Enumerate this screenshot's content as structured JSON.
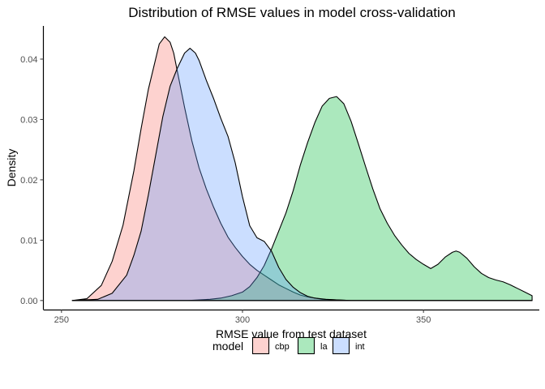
{
  "chart_data": {
    "type": "area",
    "title": "Distribution of RMSE values in model cross-validation",
    "xlabel": "RMSE value from test dataset",
    "ylabel": "Density",
    "xlim": [
      245,
      382
    ],
    "ylim": [
      -0.0015,
      0.0455
    ],
    "x_ticks": [
      250,
      300,
      350
    ],
    "x_tick_labels": [
      "250",
      "300",
      "350"
    ],
    "y_ticks": [
      0.0,
      0.01,
      0.02,
      0.03,
      0.04
    ],
    "y_tick_labels": [
      "0.00",
      "0.01",
      "0.02",
      "0.03",
      "0.04"
    ],
    "grid": false,
    "legend": {
      "title": "model",
      "position": "bottom"
    },
    "series": [
      {
        "name": "cbp",
        "color": "#F8766D",
        "x": [
          253,
          257,
          261,
          264,
          267,
          270,
          272,
          274,
          276,
          277,
          278.5,
          280,
          281,
          282,
          284,
          286,
          288,
          290,
          292,
          294,
          296,
          298,
          300,
          302,
          304,
          306,
          308,
          310,
          312,
          314,
          316,
          318,
          320,
          322,
          326,
          330,
          335,
          345,
          355,
          380
        ],
        "y": [
          0.0,
          0.0003,
          0.0025,
          0.0065,
          0.0125,
          0.0215,
          0.0285,
          0.035,
          0.04,
          0.0425,
          0.0437,
          0.0428,
          0.041,
          0.038,
          0.032,
          0.0265,
          0.022,
          0.0185,
          0.0155,
          0.0128,
          0.0105,
          0.0088,
          0.0073,
          0.006,
          0.005,
          0.0042,
          0.0034,
          0.0026,
          0.002,
          0.0014,
          0.0009,
          0.0006,
          0.0004,
          0.0002,
          0.0001,
          0.0,
          0.0,
          0.0,
          0.0,
          0.0
        ]
      },
      {
        "name": "la",
        "color": "#00BA38",
        "x": [
          253,
          285,
          288,
          291,
          294,
          297,
          300,
          302,
          304,
          306,
          308,
          310,
          312,
          314,
          316,
          318,
          320,
          322,
          324,
          326,
          328,
          330,
          332,
          334,
          336,
          338,
          340,
          342,
          344,
          346,
          348,
          350,
          352,
          354,
          356,
          358,
          359,
          360,
          362,
          364,
          366,
          368,
          370,
          372,
          374,
          376,
          378,
          380
        ],
        "y": [
          0.0,
          0.0,
          0.0001,
          0.0002,
          0.0004,
          0.0008,
          0.0014,
          0.0023,
          0.0038,
          0.0058,
          0.0085,
          0.0115,
          0.0145,
          0.0182,
          0.0225,
          0.0262,
          0.0295,
          0.0322,
          0.0335,
          0.0338,
          0.0326,
          0.0297,
          0.026,
          0.0222,
          0.0185,
          0.0152,
          0.0128,
          0.0108,
          0.0092,
          0.0078,
          0.0068,
          0.006,
          0.0053,
          0.006,
          0.0072,
          0.008,
          0.0082,
          0.008,
          0.007,
          0.0056,
          0.0045,
          0.0038,
          0.0034,
          0.0031,
          0.0026,
          0.002,
          0.0014,
          0.0008
        ]
      },
      {
        "name": "int",
        "color": "#619CFF",
        "x": [
          253,
          260,
          264,
          268,
          270,
          272,
          274,
          276,
          278,
          280,
          282,
          284,
          285.5,
          287,
          288,
          290,
          292,
          294,
          296,
          298,
          300,
          302,
          304,
          306,
          308,
          310,
          312,
          314,
          316,
          318,
          320,
          323,
          326,
          330,
          335,
          345,
          380
        ],
        "y": [
          0.0,
          0.0002,
          0.0012,
          0.0042,
          0.0075,
          0.0115,
          0.0175,
          0.024,
          0.0305,
          0.0355,
          0.0385,
          0.041,
          0.0418,
          0.041,
          0.0398,
          0.0365,
          0.0335,
          0.0302,
          0.0272,
          0.0228,
          0.0172,
          0.0124,
          0.0104,
          0.0098,
          0.0082,
          0.0055,
          0.0035,
          0.0022,
          0.0013,
          0.0007,
          0.0004,
          0.0002,
          0.0001,
          0.0,
          0.0,
          0.0,
          0.0
        ]
      }
    ]
  }
}
